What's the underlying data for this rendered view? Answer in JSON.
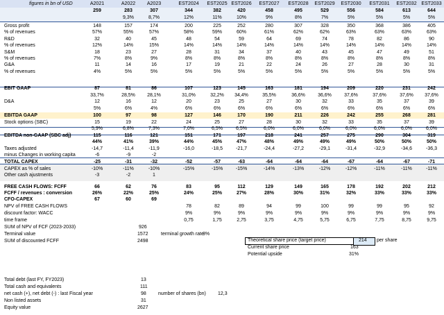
{
  "header": {
    "label": "figures in bn of USD",
    "years": [
      "A2021",
      "A2022",
      "A2023",
      "EST2024",
      "EST2025",
      "EST2026",
      "EST2027",
      "EST2028",
      "EST2029",
      "EST2030",
      "EST2031",
      "EST2032",
      "EST2033"
    ]
  },
  "revenues": {
    "values": [
      "259",
      "283",
      "307",
      "344",
      "382",
      "420",
      "458",
      "495",
      "529",
      "556",
      "584",
      "613",
      "644"
    ],
    "growth": [
      "",
      "9,3%",
      "8,7%",
      "12%",
      "11%",
      "10%",
      "9%",
      "8%",
      "7%",
      "5%",
      "5%",
      "5%",
      "5%"
    ]
  },
  "rows_a": [
    {
      "label": "Gross profit",
      "v": [
        "148",
        "157",
        "174",
        "200",
        "225",
        "252",
        "280",
        "307",
        "328",
        "350",
        "368",
        "386",
        "405"
      ]
    },
    {
      "label": "% of revenues",
      "v": [
        "57%",
        "55%",
        "57%",
        "58%",
        "59%",
        "60%",
        "61%",
        "62%",
        "62%",
        "63%",
        "63%",
        "63%",
        "63%"
      ]
    },
    {
      "label": "R&D",
      "v": [
        "32",
        "40",
        "45",
        "48",
        "54",
        "59",
        "64",
        "69",
        "74",
        "78",
        "82",
        "86",
        "90"
      ]
    },
    {
      "label": "% of revenues",
      "v": [
        "12%",
        "14%",
        "15%",
        "14%",
        "14%",
        "14%",
        "14%",
        "14%",
        "14%",
        "14%",
        "14%",
        "14%",
        "14%"
      ]
    },
    {
      "label": "S&M",
      "v": [
        "18",
        "23",
        "27",
        "28",
        "31",
        "34",
        "37",
        "40",
        "43",
        "45",
        "47",
        "49",
        "51"
      ]
    },
    {
      "label": "% of revenues",
      "v": [
        "7%",
        "8%",
        "9%",
        "8%",
        "8%",
        "8%",
        "8%",
        "8%",
        "8%",
        "8%",
        "8%",
        "8%",
        "8%"
      ]
    },
    {
      "label": "G&A",
      "v": [
        "11",
        "14",
        "16",
        "17",
        "19",
        "21",
        "22",
        "24",
        "26",
        "27",
        "28",
        "30",
        "31"
      ]
    },
    {
      "label": "% of revenues",
      "v": [
        "4%",
        "5%",
        "5%",
        "5%",
        "5%",
        "5%",
        "5%",
        "5%",
        "5%",
        "5%",
        "5%",
        "5%",
        "5%"
      ]
    }
  ],
  "ebit": {
    "label": "EBIT GAAP",
    "v": [
      "87",
      "81",
      "86",
      "107",
      "123",
      "145",
      "163",
      "181",
      "194",
      "209",
      "220",
      "231",
      "242"
    ],
    "pct": [
      "33,7%",
      "28,5%",
      "28,1%",
      "31,0%",
      "32,2%",
      "34,4%",
      "35,5%",
      "36,6%",
      "36,6%",
      "37,6%",
      "37,6%",
      "37,6%",
      "37,6%"
    ]
  },
  "rows_b": [
    {
      "label": "D&A",
      "v": [
        "12",
        "16",
        "12",
        "20",
        "23",
        "25",
        "27",
        "30",
        "32",
        "33",
        "35",
        "37",
        "39"
      ]
    },
    {
      "label": "",
      "v": [
        "5%",
        "6%",
        "4%",
        "6%",
        "6%",
        "6%",
        "6%",
        "6%",
        "6%",
        "6%",
        "6%",
        "6%",
        "6%"
      ]
    }
  ],
  "ebitda": {
    "label": "EBITDA GAAP",
    "v": [
      "100",
      "97",
      "98",
      "127",
      "146",
      "170",
      "190",
      "211",
      "226",
      "242",
      "255",
      "268",
      "281"
    ]
  },
  "rows_c": [
    {
      "label": "Stock options (SBC)",
      "v": [
        "15",
        "19",
        "22",
        "24",
        "25",
        "27",
        "28",
        "30",
        "32",
        "33",
        "35",
        "37",
        "39"
      ]
    },
    {
      "label": "",
      "v": [
        "5,9%",
        "6,8%",
        "7,3%",
        "7,0%",
        "6,5%",
        "6,5%",
        "6,0%",
        "6,0%",
        "6,0%",
        "6,0%",
        "6,0%",
        "6,0%",
        "6,0%"
      ]
    }
  ],
  "ebitda_adj": {
    "label": "EBITDA  non-GAAP (SBC adj)",
    "v": [
      "115",
      "116",
      "121",
      "151",
      "171",
      "197",
      "218",
      "241",
      "257",
      "275",
      "290",
      "304",
      "319"
    ],
    "pct": [
      "44%",
      "41%",
      "39%",
      "44%",
      "45%",
      "47%",
      "48%",
      "49%",
      "49%",
      "49%",
      "50%",
      "50%",
      "50%"
    ]
  },
  "rows_d": [
    {
      "label": "Taxes adjusted",
      "v": [
        "-14,7",
        "-11,4",
        "-11,9",
        "-16,0",
        "-18,5",
        "-21,7",
        "-24,4",
        "-27,2",
        "-29,1",
        "-31,4",
        "-32,9",
        "-34,6",
        "-36,3"
      ]
    },
    {
      "label": "minus Changes in working capita",
      "v": [
        "-6",
        "-9",
        "-2",
        "",
        "",
        "",
        "",
        "",
        "",
        "",
        "",
        "",
        ""
      ]
    }
  ],
  "capex": {
    "label": "TOTAL CAPEX",
    "v": [
      "-25",
      "-31",
      "-32",
      "-52",
      "-57",
      "-63",
      "-64",
      "-64",
      "-64",
      "-67",
      "-64",
      "-67",
      "-71"
    ]
  },
  "rows_e": [
    {
      "label": "CAPEX as % of sales",
      "v": [
        "-10%",
        "-11%",
        "-10%",
        "-15%",
        "-15%",
        "-15%",
        "-14%",
        "-13%",
        "-12%",
        "-12%",
        "-11%",
        "-11%",
        "-11%"
      ]
    },
    {
      "label": "Other cash ajustments",
      "v": [
        "-3",
        "-2",
        "1",
        "",
        "",
        "",
        "",
        "",
        "",
        "",
        "",
        "",
        ""
      ]
    }
  ],
  "fcf": {
    "label": "FREE CASH FLOWS: FCFF",
    "v": [
      "66",
      "62",
      "76",
      "83",
      "95",
      "112",
      "129",
      "149",
      "165",
      "178",
      "192",
      "202",
      "212"
    ]
  },
  "fcf_conv": {
    "label": "FCFF / revenues : conversion",
    "v": [
      "26%",
      "22%",
      "25%",
      "24%",
      "25%",
      "27%",
      "28%",
      "30%",
      "31%",
      "32%",
      "33%",
      "33%",
      "33%"
    ]
  },
  "cfo_capex": {
    "label": "CFO-CAPEX",
    "v": [
      "67",
      "60",
      "69"
    ]
  },
  "npv": {
    "label_npv": "NPV of FREE CASH FLOWS",
    "npv": [
      "78",
      "82",
      "89",
      "94",
      "99",
      "100",
      "99",
      "99",
      "95",
      "92"
    ],
    "label_discount": "discount factor: WACC",
    "discount": [
      "9%",
      "9%",
      "9%",
      "9%",
      "9%",
      "9%",
      "9%",
      "9%",
      "9%",
      "9%"
    ],
    "label_time": "time frame",
    "time": [
      "0,75",
      "1,75",
      "2,75",
      "3,75",
      "4,75",
      "5,75",
      "6,75",
      "7,75",
      "8,75",
      "9,75"
    ]
  },
  "summary": {
    "sum_npv_label": "SUM of NPV of FCF (2023-2033)",
    "sum_npv": "926",
    "terminal_label": "Terminal value",
    "terminal": "1572",
    "growth_label": "terminal growth rate",
    "growth": "3%",
    "sum_disc_label": "SUM of discounted FCFF",
    "sum_disc": "2498",
    "target_label": "Theoretical share price (target price)",
    "target": "214",
    "per_share": "per share",
    "current_label": "Current share price",
    "current": "163",
    "upside_label": "Potential upside",
    "upside": "31%",
    "debt_label": "Total debt (last FY, FY2023)",
    "debt": "13",
    "cash_label": "Total cash and equivalents",
    "cash": "111",
    "netcash_label": "net cash (+), net debt (-) : last Fiscal year",
    "netcash": "98",
    "shares_label": "number of shares  (bn)",
    "shares": "12,3",
    "nonlisted_label": "Non listed assets",
    "nonlisted": "31",
    "equity_label": "Equity value",
    "equity": "2627"
  }
}
